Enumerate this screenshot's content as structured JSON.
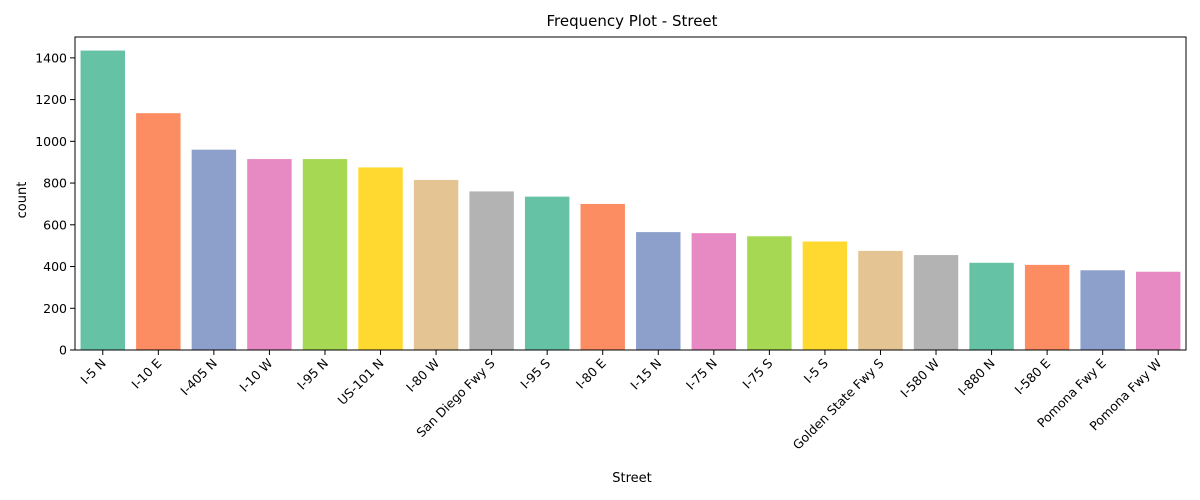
{
  "chart_data": {
    "type": "bar",
    "title": "Frequency Plot - Street",
    "xlabel": "Street",
    "ylabel": "count",
    "ylim": [
      0,
      1500
    ],
    "yticks": [
      0,
      200,
      400,
      600,
      800,
      1000,
      1200,
      1400
    ],
    "grid": false,
    "categories": [
      "I-5 N",
      "I-10 E",
      "I-405 N",
      "I-10 W",
      "I-95 N",
      "US-101 N",
      "I-80 W",
      "San Diego Fwy S",
      "I-95 S",
      "I-80 E",
      "I-15 N",
      "I-75 N",
      "I-75 S",
      "I-5 S",
      "Golden State Fwy S",
      "I-580 W",
      "I-880 N",
      "I-580 E",
      "Pomona Fwy E",
      "Pomona Fwy W"
    ],
    "values": [
      1435,
      1135,
      960,
      915,
      915,
      875,
      815,
      760,
      735,
      700,
      565,
      560,
      545,
      520,
      475,
      455,
      418,
      408,
      382,
      375
    ],
    "colors": [
      "#66c2a5",
      "#fc8d62",
      "#8da0cb",
      "#e78ac3",
      "#a6d854",
      "#ffd92f",
      "#e5c494",
      "#b3b3b3",
      "#66c2a5",
      "#fc8d62",
      "#8da0cb",
      "#e78ac3",
      "#a6d854",
      "#ffd92f",
      "#e5c494",
      "#b3b3b3",
      "#66c2a5",
      "#fc8d62",
      "#8da0cb",
      "#e78ac3"
    ]
  }
}
